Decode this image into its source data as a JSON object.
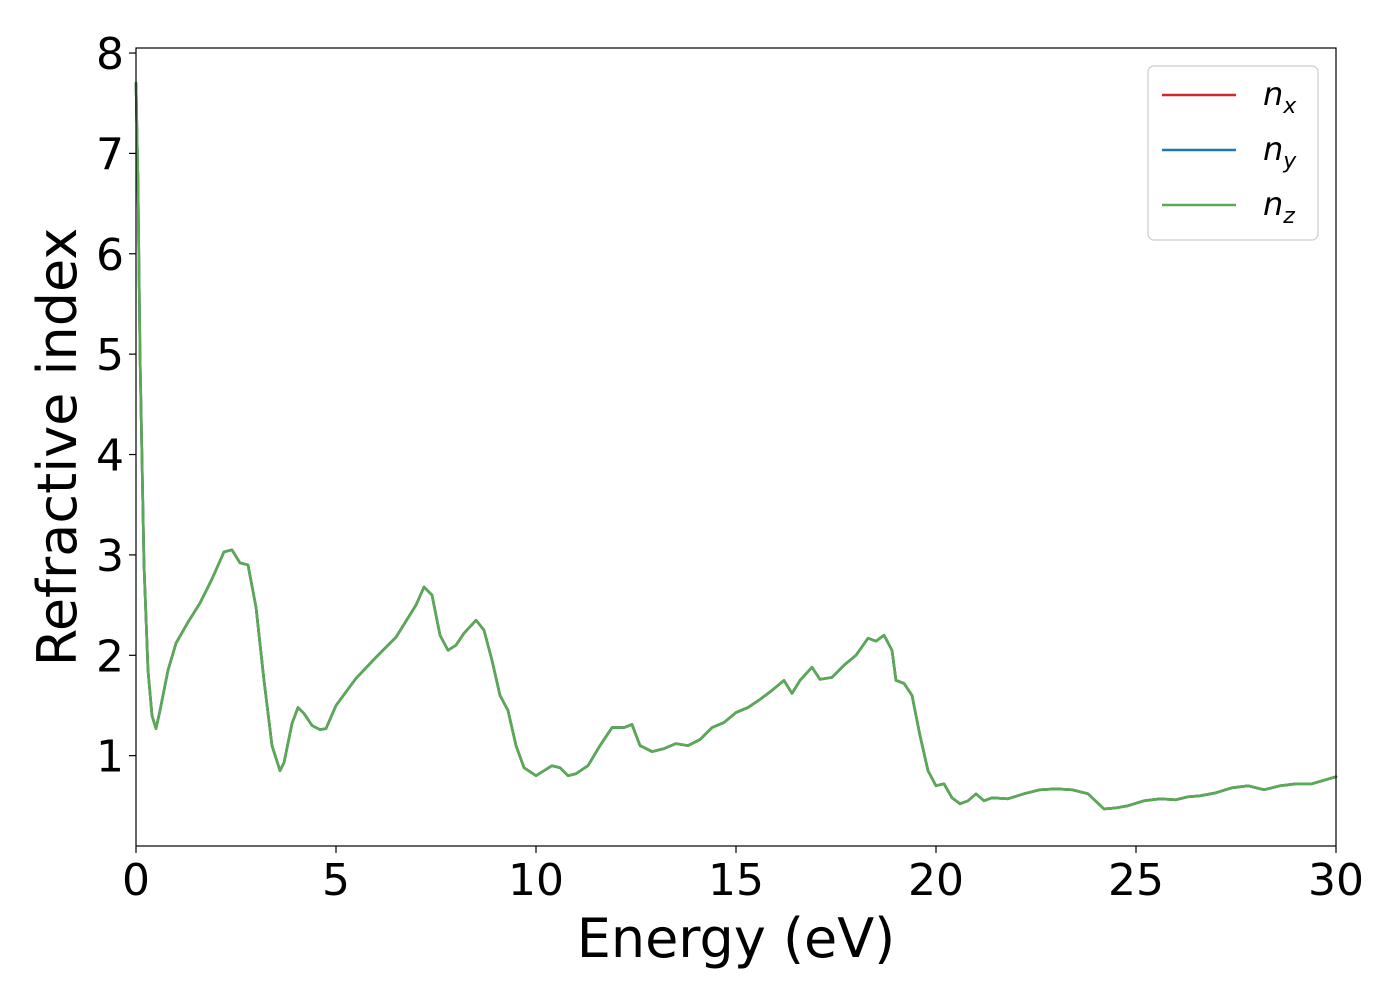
{
  "chart_data": {
    "type": "line",
    "xlabel": "Energy (eV)",
    "ylabel": "Refractive index",
    "xlim": [
      0,
      30
    ],
    "ylim": [
      0.1,
      8.05
    ],
    "xticks": [
      0,
      5,
      10,
      15,
      20,
      25,
      30
    ],
    "xtick_labels": [
      "0",
      "5",
      "10",
      "15",
      "20",
      "25",
      "30"
    ],
    "yticks": [
      1,
      2,
      3,
      4,
      5,
      6,
      7,
      8
    ],
    "ytick_labels": [
      "1",
      "2",
      "3",
      "4",
      "5",
      "6",
      "7",
      "8"
    ],
    "grid": false,
    "legend_position": "top-right",
    "x": [
      0.0,
      0.05,
      0.1,
      0.2,
      0.3,
      0.4,
      0.5,
      0.6,
      0.8,
      1.0,
      1.3,
      1.6,
      1.9,
      2.2,
      2.4,
      2.6,
      2.8,
      3.0,
      3.2,
      3.4,
      3.6,
      3.7,
      3.9,
      4.05,
      4.2,
      4.4,
      4.6,
      4.75,
      5.0,
      5.5,
      6.0,
      6.5,
      7.0,
      7.2,
      7.4,
      7.6,
      7.8,
      8.0,
      8.2,
      8.5,
      8.7,
      8.9,
      9.1,
      9.3,
      9.5,
      9.7,
      10.0,
      10.2,
      10.4,
      10.6,
      10.8,
      11.0,
      11.3,
      11.6,
      11.9,
      12.2,
      12.4,
      12.6,
      12.9,
      13.2,
      13.5,
      13.8,
      14.1,
      14.4,
      14.7,
      15.0,
      15.3,
      15.6,
      15.9,
      16.2,
      16.4,
      16.6,
      16.9,
      17.1,
      17.4,
      17.7,
      18.0,
      18.3,
      18.5,
      18.7,
      18.9,
      19.0,
      19.2,
      19.4,
      19.6,
      19.8,
      20.0,
      20.2,
      20.4,
      20.6,
      20.8,
      21.0,
      21.2,
      21.4,
      21.8,
      22.2,
      22.6,
      23.0,
      23.4,
      23.8,
      24.2,
      24.5,
      24.8,
      25.2,
      25.6,
      26.0,
      26.3,
      26.6,
      27.0,
      27.4,
      27.8,
      28.2,
      28.6,
      29.0,
      29.4,
      30.0
    ],
    "series": [
      {
        "name": "n_x",
        "legend_text": "n",
        "legend_sub": "x",
        "color": "#d62728",
        "values": [
          7.7,
          6.7,
          5.0,
          2.9,
          1.85,
          1.4,
          1.27,
          1.45,
          1.85,
          2.12,
          2.33,
          2.52,
          2.76,
          3.03,
          3.05,
          2.92,
          2.9,
          2.48,
          1.75,
          1.1,
          0.85,
          0.93,
          1.32,
          1.48,
          1.42,
          1.3,
          1.26,
          1.27,
          1.5,
          1.77,
          1.98,
          2.18,
          2.5,
          2.68,
          2.6,
          2.2,
          2.05,
          2.1,
          2.22,
          2.35,
          2.25,
          1.95,
          1.6,
          1.45,
          1.1,
          0.88,
          0.8,
          0.85,
          0.9,
          0.88,
          0.8,
          0.82,
          0.9,
          1.1,
          1.28,
          1.28,
          1.31,
          1.1,
          1.04,
          1.07,
          1.12,
          1.1,
          1.16,
          1.28,
          1.33,
          1.43,
          1.48,
          1.56,
          1.65,
          1.75,
          1.62,
          1.75,
          1.88,
          1.76,
          1.78,
          1.9,
          2.0,
          2.17,
          2.14,
          2.2,
          2.05,
          1.75,
          1.72,
          1.6,
          1.2,
          0.85,
          0.7,
          0.72,
          0.58,
          0.52,
          0.55,
          0.62,
          0.55,
          0.58,
          0.57,
          0.62,
          0.66,
          0.67,
          0.66,
          0.62,
          0.47,
          0.48,
          0.5,
          0.55,
          0.57,
          0.56,
          0.59,
          0.6,
          0.63,
          0.68,
          0.7,
          0.66,
          0.7,
          0.72,
          0.72,
          0.79
        ]
      },
      {
        "name": "n_y",
        "legend_text": "n",
        "legend_sub": "y",
        "color": "#1f77b4",
        "values": [
          7.7,
          6.7,
          5.0,
          2.9,
          1.85,
          1.4,
          1.27,
          1.45,
          1.85,
          2.12,
          2.33,
          2.52,
          2.76,
          3.03,
          3.05,
          2.92,
          2.9,
          2.48,
          1.75,
          1.1,
          0.85,
          0.93,
          1.32,
          1.48,
          1.42,
          1.3,
          1.26,
          1.27,
          1.5,
          1.77,
          1.98,
          2.18,
          2.5,
          2.68,
          2.6,
          2.2,
          2.05,
          2.1,
          2.22,
          2.35,
          2.25,
          1.95,
          1.6,
          1.45,
          1.1,
          0.88,
          0.8,
          0.85,
          0.9,
          0.88,
          0.8,
          0.82,
          0.9,
          1.1,
          1.28,
          1.28,
          1.31,
          1.1,
          1.04,
          1.07,
          1.12,
          1.1,
          1.16,
          1.28,
          1.33,
          1.43,
          1.48,
          1.56,
          1.65,
          1.75,
          1.62,
          1.75,
          1.88,
          1.76,
          1.78,
          1.9,
          2.0,
          2.17,
          2.14,
          2.2,
          2.05,
          1.75,
          1.72,
          1.6,
          1.2,
          0.85,
          0.7,
          0.72,
          0.58,
          0.52,
          0.55,
          0.62,
          0.55,
          0.58,
          0.57,
          0.62,
          0.66,
          0.67,
          0.66,
          0.62,
          0.47,
          0.48,
          0.5,
          0.55,
          0.57,
          0.56,
          0.59,
          0.6,
          0.63,
          0.68,
          0.7,
          0.66,
          0.7,
          0.72,
          0.72,
          0.79
        ]
      },
      {
        "name": "n_z",
        "legend_text": "n",
        "legend_sub": "z",
        "color": "#5aaa54",
        "values": [
          7.7,
          6.7,
          5.0,
          2.9,
          1.85,
          1.4,
          1.27,
          1.45,
          1.85,
          2.12,
          2.33,
          2.52,
          2.76,
          3.03,
          3.05,
          2.92,
          2.9,
          2.48,
          1.75,
          1.1,
          0.85,
          0.93,
          1.32,
          1.48,
          1.42,
          1.3,
          1.26,
          1.27,
          1.5,
          1.77,
          1.98,
          2.18,
          2.5,
          2.68,
          2.6,
          2.2,
          2.05,
          2.1,
          2.22,
          2.35,
          2.25,
          1.95,
          1.6,
          1.45,
          1.1,
          0.88,
          0.8,
          0.85,
          0.9,
          0.88,
          0.8,
          0.82,
          0.9,
          1.1,
          1.28,
          1.28,
          1.31,
          1.1,
          1.04,
          1.07,
          1.12,
          1.1,
          1.16,
          1.28,
          1.33,
          1.43,
          1.48,
          1.56,
          1.65,
          1.75,
          1.62,
          1.75,
          1.88,
          1.76,
          1.78,
          1.9,
          2.0,
          2.17,
          2.14,
          2.2,
          2.05,
          1.75,
          1.72,
          1.6,
          1.2,
          0.85,
          0.7,
          0.72,
          0.58,
          0.52,
          0.55,
          0.62,
          0.55,
          0.58,
          0.57,
          0.62,
          0.66,
          0.67,
          0.66,
          0.62,
          0.47,
          0.48,
          0.5,
          0.55,
          0.57,
          0.56,
          0.59,
          0.6,
          0.63,
          0.68,
          0.7,
          0.66,
          0.7,
          0.72,
          0.72,
          0.79
        ]
      }
    ]
  }
}
